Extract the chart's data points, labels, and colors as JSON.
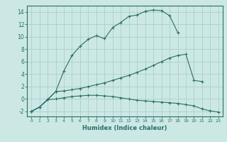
{
  "xlabel": "Humidex (Indice chaleur)",
  "bg_color": "#cce8e5",
  "line_color": "#2a6e68",
  "grid_color": "#aacfcc",
  "xlim": [
    -0.5,
    23.5
  ],
  "ylim": [
    -2.8,
    15.0
  ],
  "yticks": [
    -2,
    0,
    2,
    4,
    6,
    8,
    10,
    12,
    14
  ],
  "xticks": [
    0,
    1,
    2,
    3,
    4,
    5,
    6,
    7,
    8,
    9,
    10,
    11,
    12,
    13,
    14,
    15,
    16,
    17,
    18,
    19,
    20,
    21,
    22,
    23
  ],
  "line1_x": [
    0,
    1,
    2,
    3,
    4,
    5,
    6,
    7,
    8,
    9,
    10,
    11,
    12,
    13,
    14,
    15,
    16,
    17,
    18
  ],
  "line1_y": [
    -2.0,
    -1.3,
    -0.1,
    1.2,
    4.5,
    7.0,
    8.5,
    9.6,
    10.2,
    9.7,
    11.5,
    12.3,
    13.3,
    13.5,
    14.1,
    14.3,
    14.2,
    13.4,
    10.7
  ],
  "line2_x": [
    0,
    1,
    2,
    3,
    4,
    5,
    6,
    7,
    8,
    9,
    10,
    11,
    12,
    13,
    14,
    15,
    16,
    17,
    18,
    19,
    20,
    21
  ],
  "line2_y": [
    -2.0,
    -1.3,
    -0.1,
    1.2,
    1.3,
    1.5,
    1.7,
    2.0,
    2.3,
    2.6,
    3.0,
    3.4,
    3.8,
    4.3,
    4.8,
    5.4,
    6.0,
    6.6,
    7.0,
    7.2,
    3.0,
    2.8
  ],
  "line3_x": [
    0,
    1,
    2,
    3,
    4,
    5,
    6,
    7,
    8,
    9,
    10,
    11,
    12,
    13,
    14,
    15,
    16,
    17,
    18,
    19,
    20,
    21,
    22,
    23
  ],
  "line3_y": [
    -2.0,
    -1.3,
    -0.1,
    0.0,
    0.2,
    0.4,
    0.5,
    0.6,
    0.6,
    0.5,
    0.4,
    0.2,
    0.0,
    -0.2,
    -0.3,
    -0.4,
    -0.5,
    -0.6,
    -0.7,
    -0.9,
    -1.1,
    -1.6,
    -1.9,
    -2.1
  ]
}
